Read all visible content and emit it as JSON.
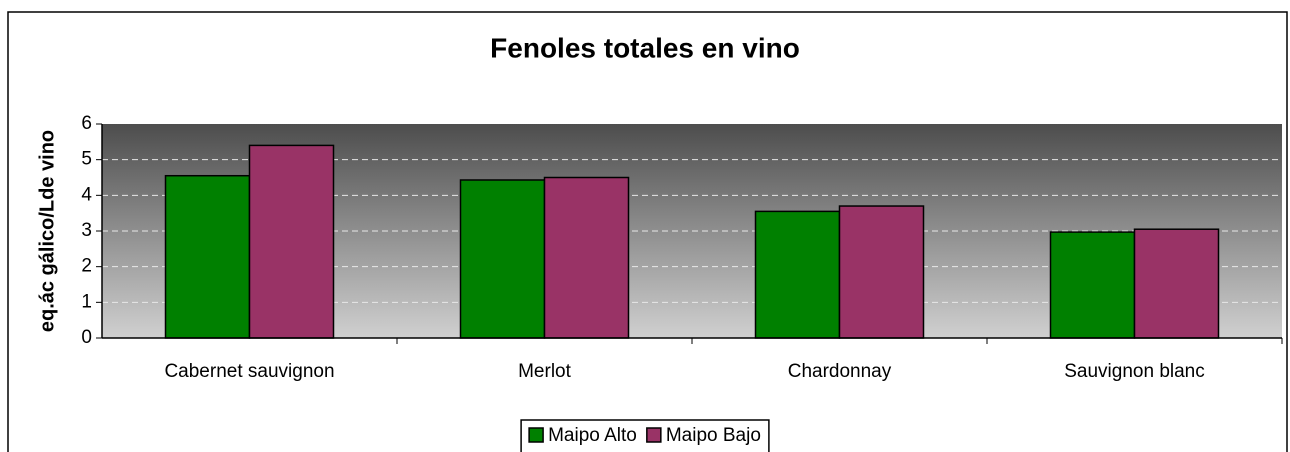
{
  "chart_data": {
    "type": "bar",
    "title": "Fenoles totales en vino",
    "y_label": "eq.ác gálico/Lde vino",
    "categories": [
      "Cabernet sauvignon",
      "Merlot",
      "Chardonnay",
      "Sauvignon blanc"
    ],
    "series": [
      {
        "name": "Maipo Alto",
        "color": "#008000",
        "values": [
          4.55,
          4.43,
          3.55,
          2.97
        ]
      },
      {
        "name": "Maipo Bajo",
        "color": "#993366",
        "values": [
          5.4,
          4.5,
          3.7,
          3.05
        ]
      }
    ],
    "ylim": [
      0,
      6
    ],
    "yticks": [
      0,
      1,
      2,
      3,
      4,
      5,
      6
    ],
    "grid": true,
    "legend": "bottom"
  }
}
